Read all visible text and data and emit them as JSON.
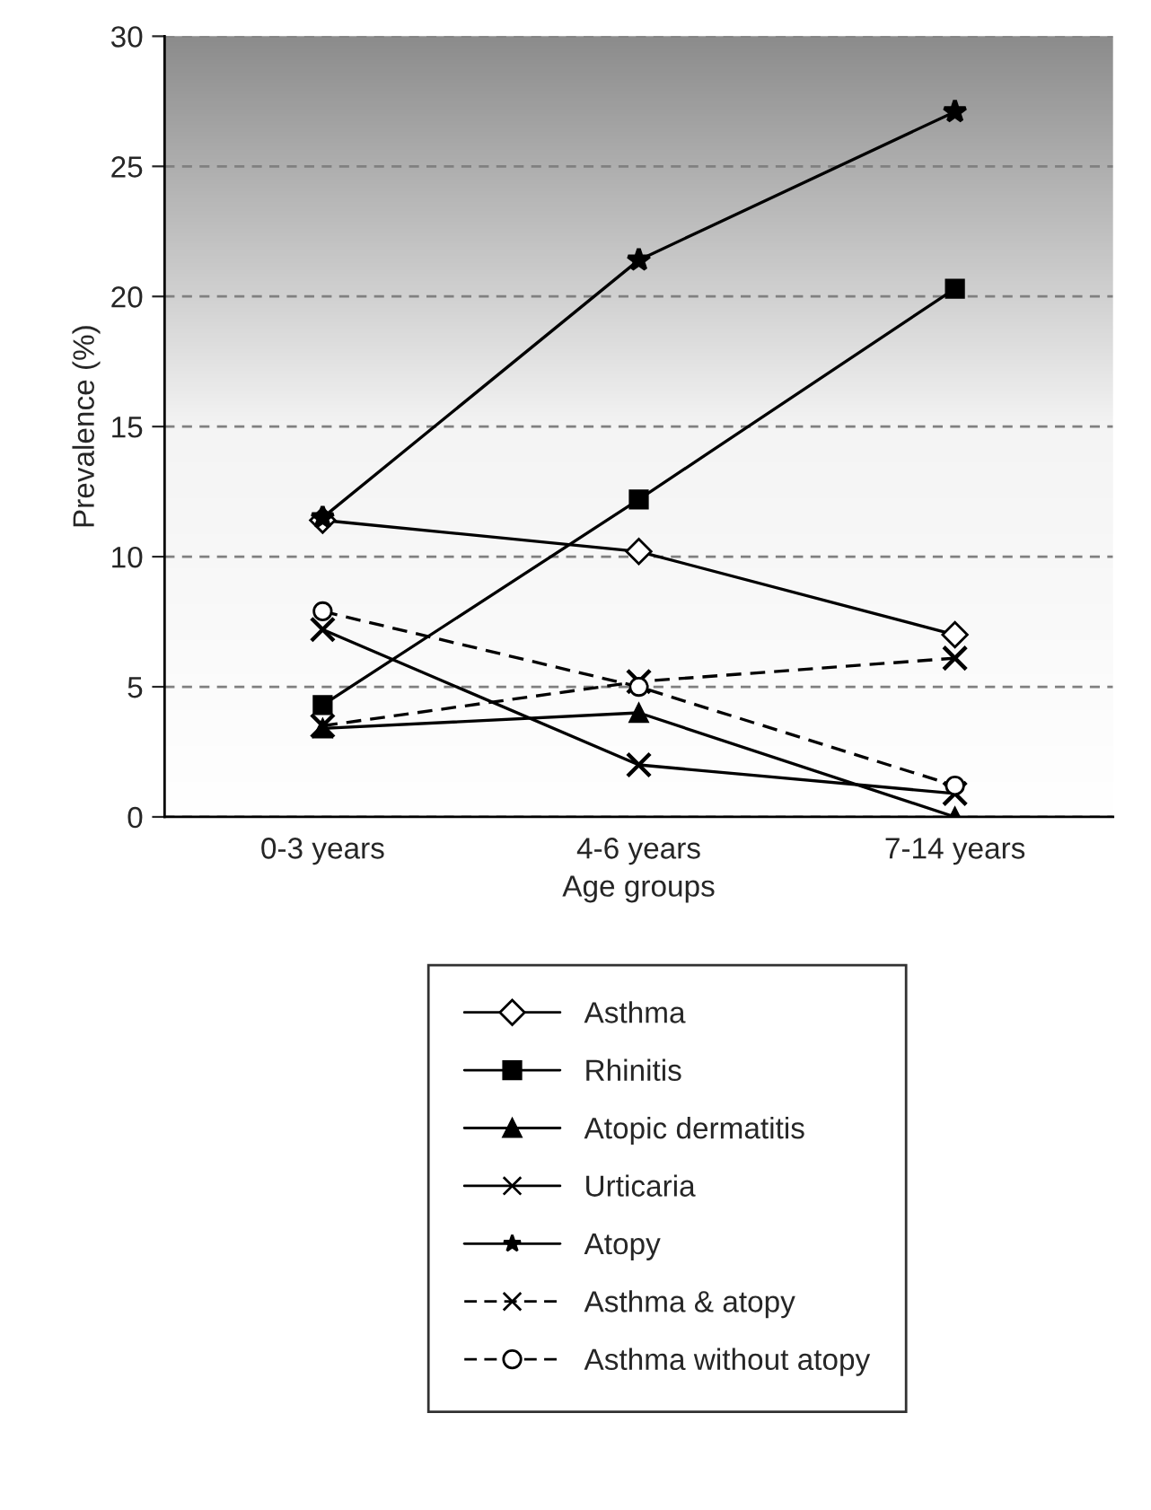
{
  "chart_data": {
    "type": "line",
    "xlabel": "Age groups",
    "ylabel": "Prevalence (%)",
    "categories": [
      "0-3 years",
      "4-6 years",
      "7-14 years"
    ],
    "series": [
      {
        "name": "Asthma",
        "color": "#000000",
        "values": [
          11.4,
          10.2,
          7.0
        ],
        "marker": "diamond",
        "line_style": "solid"
      },
      {
        "name": "Rhinitis",
        "color": "#000000",
        "values": [
          4.3,
          12.2,
          20.3
        ],
        "marker": "square",
        "line_style": "solid"
      },
      {
        "name": "Atopic dermatitis",
        "color": "#000000",
        "values": [
          3.4,
          4.0,
          0
        ],
        "marker": "triangle",
        "line_style": "solid"
      },
      {
        "name": "Urticaria",
        "color": "#000000",
        "values": [
          7.2,
          2.0,
          0.9
        ],
        "marker": "cross",
        "line_style": "solid"
      },
      {
        "name": "Atopy",
        "color": "#000000",
        "values": [
          11.5,
          21.4,
          27.1
        ],
        "marker": "star",
        "line_style": "solid"
      },
      {
        "name": "Asthma & atopy",
        "color": "#000000",
        "values": [
          3.5,
          5.2,
          6.1
        ],
        "marker": "cross",
        "line_style": "dashed"
      },
      {
        "name": "Asthma without atopy",
        "color": "#000000",
        "values": [
          7.9,
          5.0,
          1.2
        ],
        "marker": "circle",
        "line_style": "dashed"
      }
    ],
    "ylim": [
      0,
      30
    ],
    "yticks": [
      0,
      5,
      10,
      15,
      20,
      25,
      30
    ],
    "grid": "y",
    "legend": "bottom"
  }
}
